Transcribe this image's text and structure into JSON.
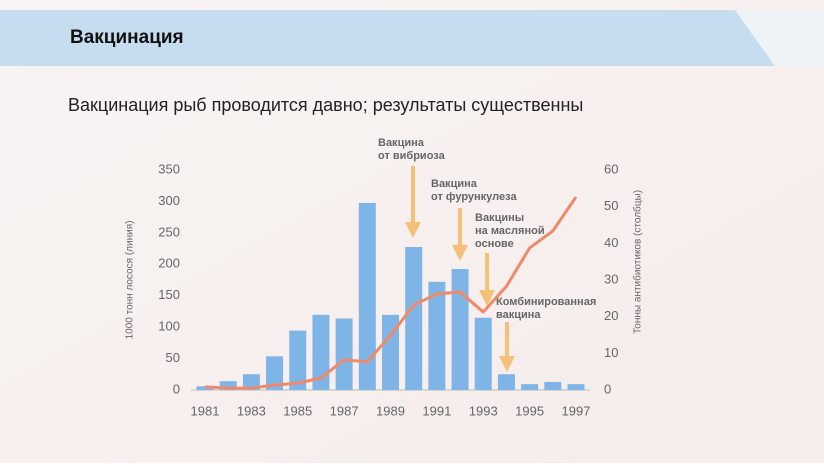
{
  "header": {
    "title": "Вакцинация"
  },
  "subtitle": "Вакцинация рыб проводится давно; результаты существенны",
  "chart_data": {
    "type": "bar",
    "y_label": "1000 тонн лосося (линия)",
    "y2_label": "Тонны антибиотиков (столбцы)",
    "categories": [
      "1981",
      null,
      "1983",
      null,
      "1985",
      null,
      "1987",
      null,
      "1989",
      null,
      "1991",
      null,
      "1993",
      null,
      "1995",
      null,
      "1997"
    ],
    "series": [
      {
        "type": "bar",
        "axis": "y2",
        "color": "#7fb5e6",
        "values": [
          1,
          2.4,
          4.3,
          9.2,
          16.2,
          20.5,
          19.5,
          51,
          20.5,
          39,
          29.5,
          33,
          19.7,
          4.3,
          1.6,
          2.2,
          1.6
        ]
      },
      {
        "type": "line",
        "axis": "y",
        "color": "#f0896a",
        "values": [
          5,
          3,
          3,
          8,
          11,
          19,
          48,
          45,
          87,
          135,
          153,
          156,
          124,
          165,
          226,
          253,
          307
        ]
      }
    ],
    "ylim": [
      0,
      350
    ],
    "yticks": [
      0,
      50,
      100,
      150,
      200,
      250,
      300,
      350
    ],
    "y2lim": [
      0,
      60
    ],
    "y2ticks": [
      0,
      10,
      20,
      30,
      40,
      50,
      60
    ],
    "annotations": [
      [
        "Вакцина",
        "от вибриоза"
      ],
      [
        "Вакцина",
        "от фурункулеза"
      ],
      [
        "Вакцины",
        "на масляной",
        "основе"
      ],
      [
        "Комбинированная",
        "вакцина"
      ]
    ]
  }
}
